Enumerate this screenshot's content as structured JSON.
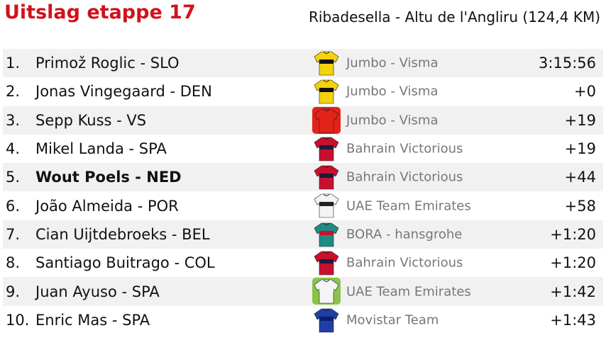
{
  "header": {
    "title": "Uitslag etappe 17",
    "subtitle": "Ribadesella - Altu de l'Angliru (124,4 KM)"
  },
  "table": {
    "rows": [
      [
        "1.",
        "Primož Roglic - SLO",
        "Jumbo - Visma",
        "3:15:56"
      ],
      [
        "2.",
        "Jonas Vingegaard - DEN",
        "Jumbo - Visma",
        "+0"
      ],
      [
        "3.",
        "Sepp Kuss - VS",
        "Jumbo - Visma",
        "+19"
      ],
      [
        "4.",
        "Mikel Landa - SPA",
        "Bahrain Victorious",
        "+19"
      ],
      [
        "5.",
        "Wout Poels - NED",
        "Bahrain Victorious",
        "+44"
      ],
      [
        "6.",
        "João Almeida - POR",
        "UAE Team Emirates",
        "+58"
      ],
      [
        "7.",
        "Cian Uijtdebroeks - BEL",
        "BORA - hansgrohe",
        "+1:20"
      ],
      [
        "8.",
        "Santiago Buitrago - COL",
        "Bahrain Victorious",
        "+1:20"
      ],
      [
        "9.",
        "Juan Ayuso - SPA",
        "UAE Team Emirates",
        "+1:42"
      ],
      [
        "10.",
        "Enric Mas - SPA",
        "Movistar Team",
        "+1:43"
      ]
    ]
  }
}
